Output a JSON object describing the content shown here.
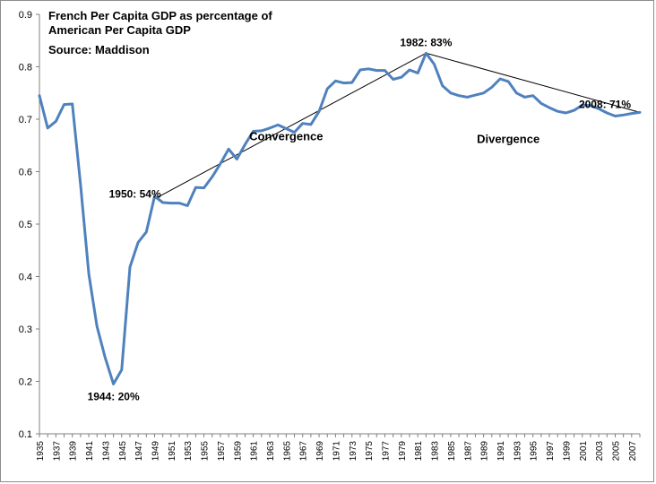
{
  "chart_data": {
    "type": "line",
    "title_lines": [
      "French Per Capita GDP as percentage of",
      "American Per Capita GDP"
    ],
    "source": "Source: Maddison",
    "ylim": [
      0.1,
      0.9
    ],
    "yticks": [
      0.1,
      0.2,
      0.3,
      0.4,
      0.5,
      0.6,
      0.7,
      0.8,
      0.9
    ],
    "xlim": [
      1935,
      2008
    ],
    "xtick_years": [
      1935,
      1937,
      1939,
      1941,
      1943,
      1945,
      1947,
      1949,
      1951,
      1953,
      1955,
      1957,
      1959,
      1961,
      1963,
      1965,
      1967,
      1969,
      1971,
      1973,
      1975,
      1977,
      1979,
      1981,
      1983,
      1985,
      1987,
      1989,
      1991,
      1993,
      1995,
      1997,
      1999,
      2001,
      2003,
      2005,
      2007
    ],
    "grid": false,
    "line_color": "#4f81bd",
    "series": [
      {
        "years": [
          1935,
          1936,
          1937,
          1938,
          1939,
          1940,
          1941,
          1942,
          1943,
          1944,
          1945,
          1946,
          1947,
          1948,
          1949,
          1950,
          1951,
          1952,
          1953,
          1954,
          1955,
          1956,
          1957,
          1958,
          1959,
          1960,
          1961,
          1962,
          1963,
          1964,
          1965,
          1966,
          1967,
          1968,
          1969,
          1970,
          1971,
          1972,
          1973,
          1974,
          1975,
          1976,
          1977,
          1978,
          1979,
          1980,
          1981,
          1982,
          1983,
          1984,
          1985,
          1986,
          1987,
          1988,
          1989,
          1990,
          1991,
          1992,
          1993,
          1994,
          1995,
          1996,
          1997,
          1998,
          1999,
          2000,
          2001,
          2002,
          2003,
          2004,
          2005,
          2006,
          2007,
          2008
        ],
        "values": [
          0.745,
          0.683,
          0.696,
          0.728,
          0.729,
          0.575,
          0.405,
          0.305,
          0.245,
          0.195,
          0.222,
          0.418,
          0.465,
          0.485,
          0.553,
          0.541,
          0.54,
          0.54,
          0.535,
          0.57,
          0.569,
          0.59,
          0.615,
          0.643,
          0.624,
          0.652,
          0.677,
          0.678,
          0.683,
          0.689,
          0.682,
          0.675,
          0.692,
          0.69,
          0.715,
          0.758,
          0.773,
          0.769,
          0.77,
          0.794,
          0.796,
          0.793,
          0.793,
          0.776,
          0.78,
          0.794,
          0.788,
          0.826,
          0.805,
          0.764,
          0.75,
          0.745,
          0.742,
          0.746,
          0.75,
          0.761,
          0.777,
          0.772,
          0.75,
          0.742,
          0.745,
          0.73,
          0.722,
          0.715,
          0.712,
          0.717,
          0.727,
          0.726,
          0.72,
          0.712,
          0.706,
          0.708,
          0.711,
          0.713
        ]
      }
    ],
    "trend_lines": [
      {
        "from": [
          1949,
          0.548
        ],
        "to": [
          1982,
          0.826
        ]
      },
      {
        "from": [
          1982,
          0.826
        ],
        "to": [
          2008,
          0.713
        ]
      }
    ],
    "annotations": [
      {
        "text": "1944: 20%",
        "year": 1944,
        "value": 0.195
      },
      {
        "text": "1950: 54%",
        "year": 1950,
        "value": 0.54
      },
      {
        "text": "1982: 83%",
        "year": 1982,
        "value": 0.826
      },
      {
        "text": "2008: 71%",
        "year": 2008,
        "value": 0.713
      }
    ],
    "region_labels": [
      {
        "text": "Convergence",
        "year": 1965,
        "value": 0.66
      },
      {
        "text": "Divergence",
        "year": 1992,
        "value": 0.655
      }
    ]
  }
}
